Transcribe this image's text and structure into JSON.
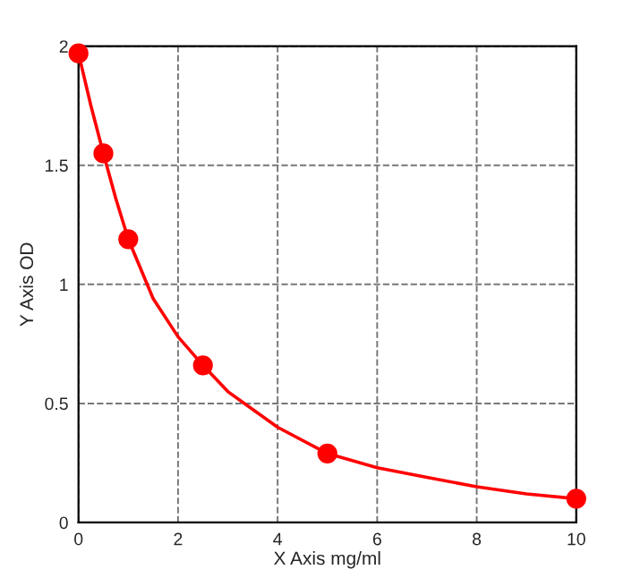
{
  "chart_data": {
    "type": "line",
    "xlabel": "X Axis mg/ml",
    "ylabel": "Y Axis OD",
    "x": [
      0,
      0.5,
      1,
      2.5,
      5,
      10
    ],
    "series": [
      {
        "type": "scatter",
        "color": "#ff0000",
        "marker": "circle",
        "values": [
          1.97,
          1.55,
          1.19,
          0.66,
          0.29,
          0.1
        ]
      },
      {
        "color": "#ff0000",
        "marker": "none",
        "line_style": "solid",
        "x": [
          0,
          0.25,
          0.5,
          0.75,
          1,
          1.5,
          2,
          2.5,
          3,
          4,
          5,
          6,
          7,
          8,
          9,
          10
        ],
        "values": [
          1.97,
          1.75,
          1.55,
          1.36,
          1.19,
          0.94,
          0.78,
          0.66,
          0.55,
          0.4,
          0.29,
          0.23,
          0.19,
          0.15,
          0.12,
          0.1
        ]
      }
    ],
    "xlim": [
      0,
      10
    ],
    "xticks": [
      0,
      2,
      4,
      6,
      8,
      10
    ],
    "ylim": [
      0,
      2
    ],
    "yticks": [
      0,
      0.5,
      1,
      1.5,
      2
    ],
    "grid": true,
    "legend": false
  }
}
